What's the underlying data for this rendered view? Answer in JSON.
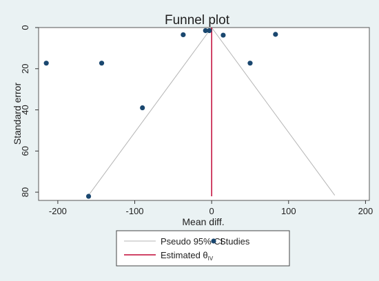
{
  "chart_data": {
    "type": "scatter",
    "title": "Funnel plot",
    "xlabel": "Mean diff.",
    "ylabel": "Standard error",
    "xlim": [
      -225,
      205
    ],
    "ylim": [
      0,
      84
    ],
    "y_reversed": true,
    "x_ticks": [
      -200,
      -100,
      0,
      100,
      200
    ],
    "y_ticks": [
      0,
      20,
      40,
      60,
      80
    ],
    "grid": false,
    "series": [
      {
        "name": "Studies",
        "kind": "points",
        "color": "#1a476f",
        "points": [
          {
            "x": -215,
            "y": 17.3
          },
          {
            "x": -143,
            "y": 17.3
          },
          {
            "x": -90,
            "y": 39
          },
          {
            "x": -160,
            "y": 82
          },
          {
            "x": -37,
            "y": 3.5
          },
          {
            "x": -8,
            "y": 1.5
          },
          {
            "x": -3,
            "y": 1.5
          },
          {
            "x": 15,
            "y": 3.7
          },
          {
            "x": 50,
            "y": 17.3
          },
          {
            "x": 83,
            "y": 3.3
          }
        ]
      },
      {
        "name": "Pseudo 95% CI",
        "kind": "funnel",
        "color": "#b4b4b4",
        "apex": {
          "x": 0,
          "y": 0
        },
        "base_y": 81.5,
        "base_left_x": -160,
        "base_right_x": 160
      },
      {
        "name": "Estimated θ",
        "name_subscript": "IV",
        "kind": "vline",
        "color": "#c10534",
        "x": 0,
        "y_range": [
          0,
          82
        ]
      }
    ],
    "legend": {
      "position": "bottom-center",
      "items": [
        {
          "label": "Pseudo 95% CI",
          "symbol": "line",
          "color": "#b4b4b4"
        },
        {
          "label": "Studies",
          "symbol": "dot",
          "color": "#1a476f"
        },
        {
          "label": "Estimated θ",
          "subscript": "IV",
          "symbol": "line",
          "color": "#c10534"
        }
      ]
    }
  }
}
